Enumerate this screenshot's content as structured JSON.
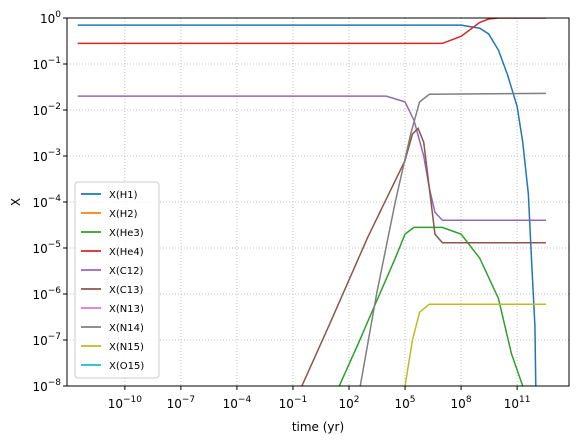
{
  "chart_data": {
    "type": "line",
    "xlabel": "time (yr)",
    "ylabel": "X",
    "xscale": "log",
    "yscale": "log",
    "grid": true,
    "legend": "lower left",
    "xlim": [
      8e-14,
      60000000000000.0
    ],
    "ylim": [
      1e-08,
      1
    ],
    "xticks": [
      {
        "value": 1e-10,
        "label": "10",
        "exponent": "−10"
      },
      {
        "value": 1e-07,
        "label": "10",
        "exponent": "−7"
      },
      {
        "value": 0.0001,
        "label": "10",
        "exponent": "−4"
      },
      {
        "value": 0.1,
        "label": "10",
        "exponent": "−1"
      },
      {
        "value": 100.0,
        "label": "10",
        "exponent": "2"
      },
      {
        "value": 100000.0,
        "label": "10",
        "exponent": "5"
      },
      {
        "value": 100000000.0,
        "label": "10",
        "exponent": "8"
      },
      {
        "value": 100000000000.0,
        "label": "10",
        "exponent": "11"
      }
    ],
    "yticks": [
      {
        "value": 1e-08,
        "label": "10",
        "exponent": "−8"
      },
      {
        "value": 1e-07,
        "label": "10",
        "exponent": "−7"
      },
      {
        "value": 1e-06,
        "label": "10",
        "exponent": "−6"
      },
      {
        "value": 1e-05,
        "label": "10",
        "exponent": "−5"
      },
      {
        "value": 0.0001,
        "label": "10",
        "exponent": "−4"
      },
      {
        "value": 0.001,
        "label": "10",
        "exponent": "−3"
      },
      {
        "value": 0.01,
        "label": "10",
        "exponent": "−2"
      },
      {
        "value": 0.1,
        "label": "10",
        "exponent": "−1"
      },
      {
        "value": 1,
        "label": "10",
        "exponent": "0"
      }
    ],
    "series": [
      {
        "name": "X(H1)",
        "color": "#1f77b4",
        "x": [
          3e-13,
          100000000.0,
          1000000000.0,
          3000000000.0,
          10000000000.0,
          30000000000.0,
          100000000000.0,
          200000000000.0,
          400000000000.0,
          600000000000.0,
          900000000000.0,
          1000000000000.0
        ],
        "values": [
          0.7,
          0.7,
          0.6,
          0.45,
          0.2,
          0.06,
          0.012,
          0.002,
          0.00015,
          5e-06,
          2e-07,
          1e-08
        ]
      },
      {
        "name": "X(H2)",
        "color": "#ff7f0e",
        "x": [],
        "values": []
      },
      {
        "name": "X(He3)",
        "color": "#2ca02c",
        "x": [
          30,
          300,
          3000,
          30000,
          100000.0,
          300000.0,
          10000000.0,
          100000000.0,
          1000000000.0,
          10000000000.0,
          50000000000.0,
          200000000000.0
        ],
        "values": [
          1e-08,
          8e-08,
          7e-07,
          6e-06,
          2e-05,
          2.8e-05,
          2.8e-05,
          2e-05,
          6e-06,
          8e-07,
          5e-08,
          1e-08
        ]
      },
      {
        "name": "X(He4)",
        "color": "#d62728",
        "x": [
          3e-13,
          10000000.0,
          100000000.0,
          1000000000.0,
          3000000000.0,
          10000000000.0,
          3500000000000.0
        ],
        "values": [
          0.28,
          0.28,
          0.4,
          0.8,
          0.95,
          1.0,
          1.0
        ]
      },
      {
        "name": "X(C12)",
        "color": "#9467bd",
        "x": [
          3e-13,
          10000.0,
          100000.0,
          300000.0,
          1000000.0,
          2000000.0,
          4000000.0,
          10000000.0,
          3500000000000.0
        ],
        "values": [
          0.02,
          0.02,
          0.015,
          0.006,
          0.001,
          0.0002,
          6e-05,
          4e-05,
          4e-05
        ]
      },
      {
        "name": "X(C13)",
        "color": "#8c564b",
        "x": [
          0.3,
          10,
          1000,
          100000.0,
          250000.0,
          500000.0,
          1000000.0,
          2000000.0,
          4000000.0,
          10000000.0,
          3500000000000.0
        ],
        "values": [
          1e-08,
          2.4e-07,
          1.7e-05,
          0.0008,
          0.003,
          0.004,
          0.002,
          0.0002,
          2e-05,
          1.3e-05,
          1.3e-05
        ]
      },
      {
        "name": "X(N13)",
        "color": "#e377c2",
        "x": [],
        "values": []
      },
      {
        "name": "X(N14)",
        "color": "#7f7f7f",
        "x": [
          400,
          3000,
          30000,
          200000.0,
          600000.0,
          2000000.0,
          3500000000000.0
        ],
        "values": [
          1e-08,
          1e-06,
          0.0001,
          0.003,
          0.015,
          0.022,
          0.023
        ]
      },
      {
        "name": "X(N15)",
        "color": "#bcbd22",
        "x": [
          100000.0,
          250000.0,
          600000.0,
          2000000.0,
          100000000000.0,
          3500000000000.0
        ],
        "values": [
          1e-08,
          1e-07,
          4e-07,
          6e-07,
          6e-07,
          6e-07
        ]
      },
      {
        "name": "X(O15)",
        "color": "#17becf",
        "x": [],
        "values": []
      }
    ]
  }
}
